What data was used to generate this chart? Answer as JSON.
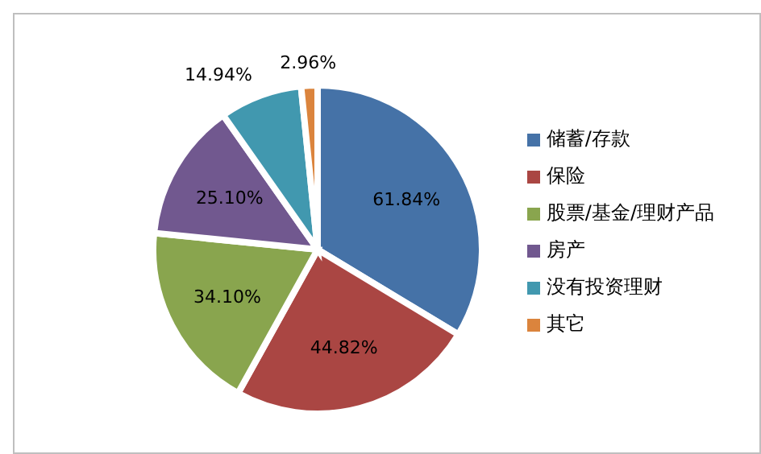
{
  "chart_data": {
    "type": "pie",
    "categories": [
      "储蓄/存款",
      "保险",
      "股票/基金/理财产品",
      "房产",
      "没有投资理财",
      "其它"
    ],
    "values": [
      61.84,
      44.82,
      34.1,
      25.1,
      14.94,
      2.96
    ],
    "colors": [
      "#4572a7",
      "#aa4643",
      "#89a54e",
      "#71588f",
      "#4198af",
      "#db843d"
    ],
    "value_labels": [
      "61.84%",
      "44.82%",
      "34.10%",
      "25.10%",
      "14.94%",
      "2.96%"
    ],
    "legend": "right"
  }
}
